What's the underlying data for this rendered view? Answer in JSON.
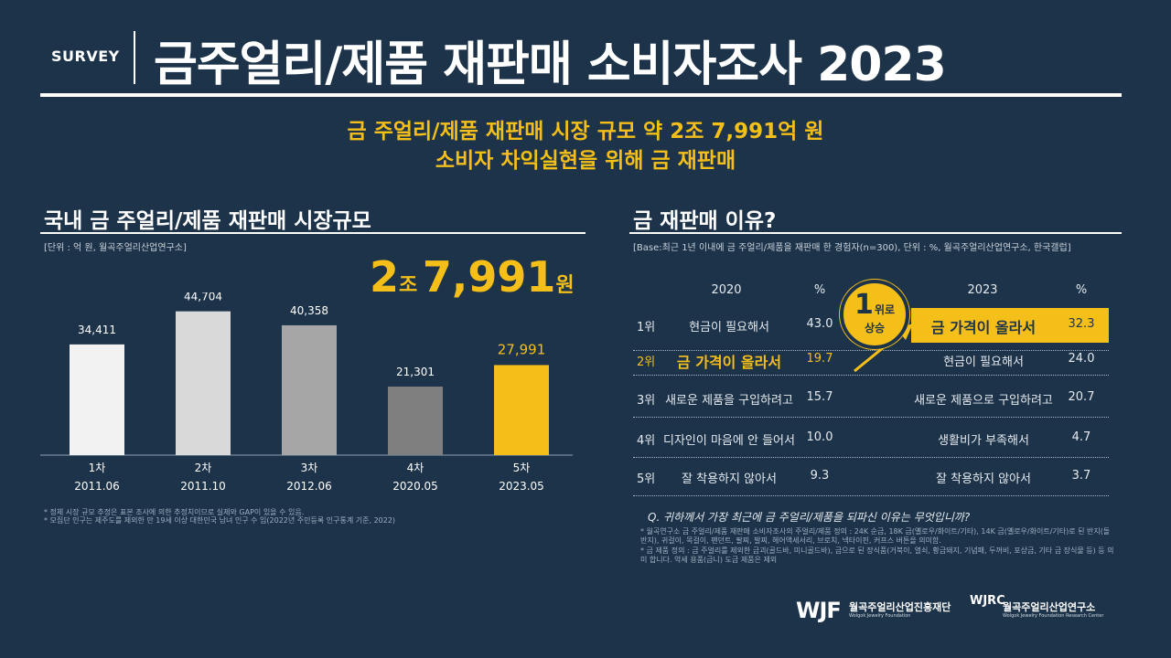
{
  "header": {
    "tag": "SURVEY",
    "title": "금주얼리/제품 재판매 소비자조사 2023"
  },
  "headline": {
    "line1": "금 주얼리/제품 재판매 시장 규모 약 2조 7,991억 원",
    "line2": "소비자 차익실현을 위해 금 재판매"
  },
  "left_section": {
    "title": "국내 금 주얼리/제품 재판매 시장규모",
    "unit_note": "[단위 : 억 원, 월곡주얼리산업연구소]",
    "total": {
      "a": "2",
      "b": "조",
      "c": "7,991",
      "d": "원"
    },
    "footnotes": [
      "* 정체 시장 규모 추정은 표본 조사에 의한 추정치이므로 실제와 GAP이 있을 수 있음.",
      "* 모집단 인구는 제주도를 제외한 만 19세 이상 대한민국 남녀 인구 수 임(2022년 주민등록 인구통계 기준, 2022)"
    ]
  },
  "chart_data": {
    "type": "bar",
    "categories": [
      "1차\n2011.06",
      "2차\n2011.10",
      "3차\n2012.06",
      "4차\n2020.05",
      "5차\n2023.05"
    ],
    "category_rounds": [
      "1차",
      "2차",
      "3차",
      "4차",
      "5차"
    ],
    "category_dates": [
      "2011.06",
      "2011.10",
      "2012.06",
      "2020.05",
      "2023.05"
    ],
    "values": [
      34411,
      44704,
      40358,
      21301,
      27991
    ],
    "value_labels": [
      "34,411",
      "44,704",
      "40,358",
      "21,301",
      "27,991"
    ],
    "bar_colors": [
      "#f2f2f2",
      "#d9d9d9",
      "#a6a6a6",
      "#7f7f7f",
      "#f5bf1a"
    ],
    "label_colors": [
      "#ffffff",
      "#ffffff",
      "#ffffff",
      "#ffffff",
      "#f5bf1a"
    ],
    "ylim": [
      0,
      50000
    ],
    "grid": false,
    "title": "",
    "xlabel": "",
    "ylabel": ""
  },
  "right_section": {
    "title": "금 재판매 이유?",
    "base_note": "[Base:최근 1년 이내에 금 주얼리/제품을 재판매 한 경험자(n=300), 단위 : %, 월곡주얼리산업연구소, 한국갤럽]",
    "headers": {
      "y2020": "2020",
      "pct_2020": "%",
      "y2023": "2023",
      "pct_2023": "%"
    },
    "badge": {
      "num": "1",
      "unit": "위로",
      "word": "상승"
    },
    "rows": [
      {
        "rank": "1위",
        "reason_2020": "현금이 필요해서",
        "pct_2020": "43.0",
        "reason_2023": "금 가격이 올라서",
        "pct_2023": "32.3"
      },
      {
        "rank": "2위",
        "reason_2020": "금 가격이 올라서",
        "pct_2020": "19.7",
        "reason_2023": "현금이 필요해서",
        "pct_2023": "24.0"
      },
      {
        "rank": "3위",
        "reason_2020": "새로운 제품을 구입하려고",
        "pct_2020": "15.7",
        "reason_2023": "새로운 제품으로 구입하려고",
        "pct_2023": "20.7"
      },
      {
        "rank": "4위",
        "reason_2020": "디자인이 마음에 안 들어서",
        "pct_2020": "10.0",
        "reason_2023": "생활비가 부족해서",
        "pct_2023": "4.7"
      },
      {
        "rank": "5위",
        "reason_2020": "잘 착용하지 않아서",
        "pct_2020": "9.3",
        "reason_2023": "잘 착용하지 않아서",
        "pct_2023": "3.7"
      }
    ],
    "question": "Q. 귀하께서 가장 최근에 금 주얼리/제품을 되파신 이유는 무엇입니까?",
    "notes": [
      "* 월곡연구소 금 주얼리/제품 재판매 소비자조사의 주얼리/제품 정의 : 24K 순금, 18K 금(옐로우/화이트/기타), 14K 금(옐로우/화이트/기타)로 된 반지(돌반지), 귀걸이, 목걸이, 팬던트, 팔찌, 발찌, 헤어액세서리, 브로치, 넥타이핀, 커프스 버튼을 의미함.",
      "* 금 제품 정의 : 금 주얼리를 제외한 금괴(골드바, 미니골드바), 금으로 된 장식품(거북이, 열쇠, 황금돼지, 기념패, 두꺼비, 포상금, 기타 금 장식물 등) 등 의미 합니다. 악세 용품(금니) 도금 제품은 제외"
    ]
  },
  "logos": {
    "wjf_mark": "WJF",
    "wjf_name": "월곡주얼리산업진흥재단",
    "wjf_sub": "Wolgok Jewelry Foundation",
    "wjrc_mark": "WJRC",
    "wjrc_name": "월곡주얼리산업연구소",
    "wjrc_sub": "Wolgok Jewelry Foundation Research Center"
  },
  "colors": {
    "background": "#1d3349",
    "accent": "#f5bf1a",
    "text": "#ffffff"
  }
}
